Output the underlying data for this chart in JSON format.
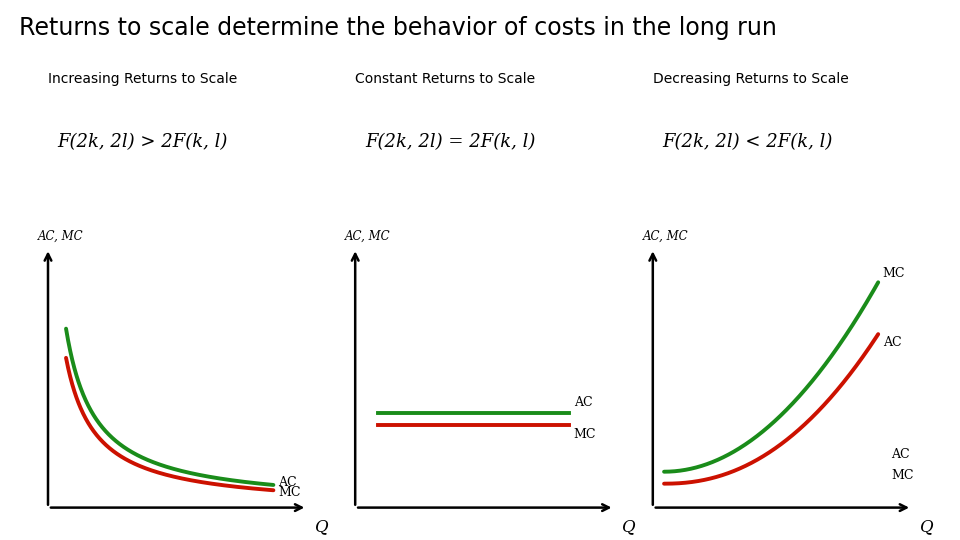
{
  "title": "Returns to scale determine the behavior of costs in the long run",
  "title_fontsize": 17,
  "bg_color": "#ffffff",
  "panels": [
    {
      "label": "Increasing Returns to Scale",
      "formula": "F(2k, 2l) > 2F(k, l)",
      "ac_color": "#1a8c1a",
      "mc_color": "#cc1100",
      "type": "decreasing",
      "ac_above": true
    },
    {
      "label": "Constant Returns to Scale",
      "formula": "F(2k, 2l) = 2F(k, l)",
      "ac_color": "#1a8c1a",
      "mc_color": "#cc1100",
      "type": "flat",
      "ac_above": true
    },
    {
      "label": "Decreasing Returns to Scale",
      "formula": "F(2k, 2l) < 2F(k, l)",
      "ac_color": "#1a8c1a",
      "mc_color": "#cc1100",
      "type": "increasing",
      "ac_above": false
    }
  ],
  "ac_label": "AC",
  "mc_label": "MC",
  "axis_label_q": "Q",
  "axis_label_acmc": "AC, MC"
}
